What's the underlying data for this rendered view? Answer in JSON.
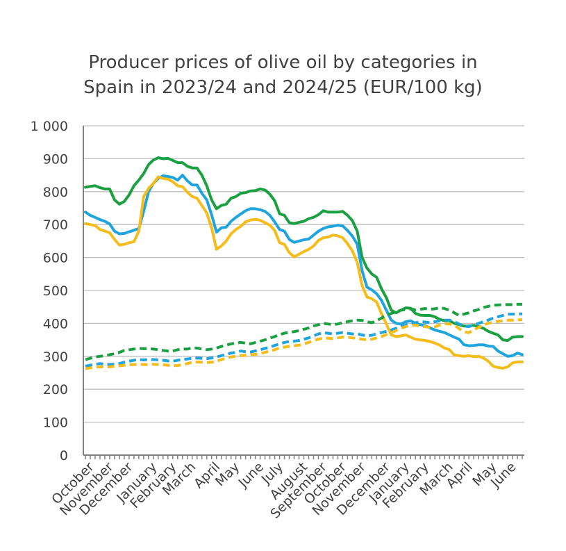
{
  "chart_data": {
    "type": "line",
    "title_lines": [
      "Producer prices of olive oil by categories in",
      "Spain in 2023/24 and 2024/25 (EUR/100 kg)"
    ],
    "ylim": [
      0,
      1000
    ],
    "yticks": [
      0,
      100,
      200,
      300,
      400,
      500,
      600,
      700,
      800,
      900,
      1000
    ],
    "ytick_labels": [
      "0",
      "100",
      "200",
      "300",
      "400",
      "500",
      "600",
      "700",
      "800",
      "900",
      "1 000"
    ],
    "grid": true,
    "weeks": 91,
    "month_labels": [
      {
        "label": "October",
        "week": 1
      },
      {
        "label": "November",
        "week": 5
      },
      {
        "label": "December",
        "week": 9
      },
      {
        "label": "January",
        "week": 14
      },
      {
        "label": "February",
        "week": 18
      },
      {
        "label": "March",
        "week": 22
      },
      {
        "label": "April",
        "week": 27
      },
      {
        "label": "May",
        "week": 31
      },
      {
        "label": "June",
        "week": 36
      },
      {
        "label": "July",
        "week": 40
      },
      {
        "label": "August",
        "week": 45
      },
      {
        "label": "September",
        "week": 49
      },
      {
        "label": "October",
        "week": 53
      },
      {
        "label": "November",
        "week": 57
      },
      {
        "label": "December",
        "week": 62
      },
      {
        "label": "January",
        "week": 66
      },
      {
        "label": "February",
        "week": 70
      },
      {
        "label": "March",
        "week": 75
      },
      {
        "label": "April",
        "week": 79
      },
      {
        "label": "May",
        "week": 84
      },
      {
        "label": "June",
        "week": 88
      }
    ],
    "series": [
      {
        "color": "#1aa040",
        "dashed": false,
        "start_week": 0,
        "values": [
          813,
          816,
          818,
          812,
          808,
          808,
          775,
          762,
          770,
          790,
          818,
          835,
          855,
          882,
          896,
          903,
          900,
          901,
          895,
          888,
          888,
          877,
          872,
          872,
          850,
          818,
          775,
          748,
          758,
          762,
          780,
          785,
          795,
          797,
          802,
          803,
          808,
          805,
          792,
          772,
          733,
          728,
          706,
          703,
          707,
          710,
          718,
          722,
          730,
          742,
          738,
          738,
          738,
          740,
          728,
          712,
          680,
          600,
          568,
          550,
          540,
          505,
          478,
          440,
          432,
          440,
          447,
          446,
          430,
          425,
          424,
          424,
          420,
          412,
          408,
          408,
          400,
          396,
          392,
          392,
          394,
          390,
          385,
          376,
          370,
          365,
          350,
          348,
          358,
          360,
          360
        ]
      },
      {
        "color": "#1fa4de",
        "dashed": false,
        "start_week": 0,
        "values": [
          738,
          728,
          722,
          715,
          710,
          702,
          680,
          672,
          673,
          678,
          683,
          688,
          740,
          800,
          825,
          840,
          848,
          846,
          843,
          835,
          850,
          833,
          820,
          820,
          795,
          775,
          730,
          677,
          690,
          692,
          710,
          722,
          732,
          742,
          748,
          748,
          745,
          740,
          728,
          708,
          685,
          680,
          655,
          646,
          650,
          654,
          656,
          668,
          680,
          688,
          693,
          695,
          698,
          696,
          682,
          665,
          640,
          560,
          510,
          502,
          490,
          470,
          440,
          410,
          400,
          398,
          405,
          408,
          400,
          396,
          393,
          386,
          380,
          376,
          372,
          365,
          358,
          352,
          335,
          332,
          333,
          335,
          335,
          331,
          330,
          316,
          308,
          300,
          302,
          310,
          305
        ]
      },
      {
        "color": "#f5bc1c",
        "dashed": false,
        "start_week": 0,
        "values": [
          703,
          700,
          697,
          685,
          680,
          675,
          655,
          638,
          640,
          645,
          648,
          680,
          785,
          810,
          825,
          845,
          840,
          838,
          830,
          818,
          815,
          798,
          785,
          780,
          758,
          735,
          690,
          625,
          635,
          650,
          672,
          685,
          695,
          708,
          714,
          716,
          713,
          706,
          698,
          682,
          645,
          640,
          615,
          602,
          610,
          618,
          625,
          635,
          652,
          660,
          662,
          668,
          666,
          660,
          642,
          620,
          585,
          515,
          480,
          475,
          465,
          430,
          398,
          365,
          360,
          362,
          365,
          358,
          352,
          350,
          348,
          345,
          340,
          334,
          325,
          320,
          304,
          302,
          300,
          302,
          299,
          300,
          295,
          285,
          270,
          266,
          264,
          268,
          280,
          283,
          283
        ]
      },
      {
        "color": "#1aa040",
        "dashed": true,
        "start_week": 0,
        "values": [
          290,
          294,
          298,
          300,
          302,
          305,
          308,
          312,
          318,
          320,
          322,
          324,
          323,
          323,
          322,
          320,
          318,
          316,
          316,
          320,
          322,
          322,
          326,
          325,
          322,
          320,
          322,
          325,
          330,
          334,
          338,
          340,
          342,
          340,
          338,
          342,
          346,
          350,
          355,
          360,
          366,
          370,
          373,
          375,
          378,
          382,
          386,
          392,
          396,
          400,
          398,
          396,
          398,
          402,
          405,
          408,
          410,
          409,
          405,
          402,
          408,
          416,
          426,
          430,
          435,
          440,
          442,
          444,
          441,
          443,
          445,
          443,
          444,
          448,
          445,
          440,
          432,
          424,
          428,
          432,
          438,
          442,
          448,
          452,
          455,
          456,
          457,
          457,
          457,
          458,
          458
        ]
      },
      {
        "color": "#1fa4de",
        "dashed": true,
        "start_week": 0,
        "values": [
          270,
          273,
          276,
          278,
          276,
          275,
          276,
          278,
          282,
          285,
          288,
          290,
          289,
          290,
          290,
          289,
          288,
          286,
          285,
          288,
          290,
          292,
          294,
          295,
          294,
          293,
          295,
          298,
          302,
          306,
          310,
          312,
          316,
          314,
          313,
          316,
          320,
          324,
          328,
          333,
          338,
          342,
          345,
          346,
          348,
          352,
          356,
          362,
          368,
          372,
          370,
          368,
          370,
          372,
          370,
          368,
          368,
          365,
          362,
          364,
          368,
          372,
          376,
          380,
          385,
          390,
          395,
          400,
          402,
          405,
          404,
          402,
          405,
          408,
          410,
          410,
          405,
          398,
          392,
          390,
          395,
          400,
          405,
          410,
          416,
          420,
          424,
          428,
          428,
          429,
          429
        ]
      },
      {
        "color": "#f5bc1c",
        "dashed": true,
        "start_week": 0,
        "values": [
          262,
          265,
          267,
          268,
          268,
          268,
          270,
          271,
          273,
          274,
          275,
          276,
          275,
          275,
          276,
          275,
          274,
          273,
          272,
          272,
          275,
          278,
          282,
          283,
          282,
          281,
          282,
          285,
          290,
          294,
          298,
          300,
          302,
          303,
          305,
          306,
          308,
          312,
          316,
          320,
          325,
          328,
          330,
          332,
          334,
          338,
          342,
          348,
          352,
          356,
          355,
          354,
          356,
          358,
          358,
          356,
          354,
          352,
          350,
          352,
          356,
          360,
          366,
          372,
          378,
          385,
          390,
          394,
          395,
          392,
          390,
          388,
          390,
          395,
          398,
          398,
          394,
          384,
          374,
          372,
          380,
          388,
          395,
          400,
          404,
          406,
          408,
          410,
          410,
          411,
          411
        ]
      }
    ]
  }
}
